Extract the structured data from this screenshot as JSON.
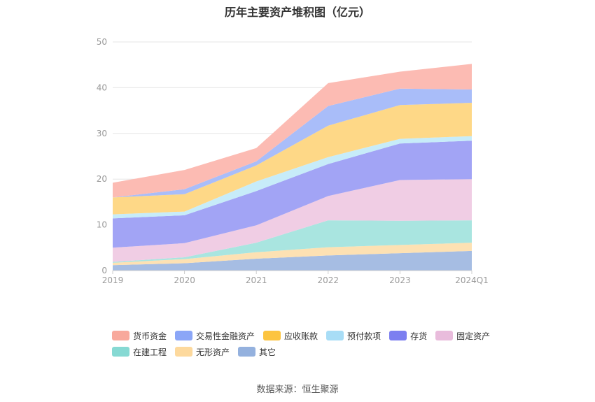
{
  "chart_data": {
    "type": "area",
    "stacked": true,
    "title": "历年主要资产堆积图（亿元）",
    "categories": [
      "2019",
      "2020",
      "2021",
      "2022",
      "2023",
      "2024Q1"
    ],
    "ylim": [
      0,
      50
    ],
    "yticks": [
      0,
      10,
      20,
      30,
      40,
      50
    ],
    "grid": true,
    "legend_position": "bottom",
    "series": [
      {
        "name": "其它",
        "color": "#a6bde3",
        "values": [
          1.2,
          1.6,
          2.6,
          3.3,
          3.8,
          4.3
        ]
      },
      {
        "name": "无形资产",
        "color": "#fde1b3",
        "values": [
          0.5,
          0.9,
          1.4,
          1.8,
          1.8,
          1.8
        ]
      },
      {
        "name": "在建工程",
        "color": "#a9e5e0",
        "values": [
          0.2,
          0.4,
          2.1,
          5.9,
          5.3,
          4.9
        ]
      },
      {
        "name": "固定资产",
        "color": "#f0cde4",
        "values": [
          3.1,
          3.1,
          3.8,
          5.3,
          8.9,
          9.0
        ]
      },
      {
        "name": "存货",
        "color": "#a2a4f5",
        "values": [
          6.4,
          6.1,
          7.5,
          7.0,
          8.0,
          8.4
        ]
      },
      {
        "name": "预付款项",
        "color": "#c7ecf9",
        "values": [
          0.9,
          0.8,
          2.1,
          1.5,
          1.0,
          1.0
        ]
      },
      {
        "name": "应收账款",
        "color": "#fed887",
        "values": [
          3.7,
          3.8,
          3.5,
          6.9,
          7.4,
          7.3
        ]
      },
      {
        "name": "交易性金融资产",
        "color": "#a9bdf9",
        "values": [
          0.0,
          1.1,
          0.9,
          4.3,
          3.6,
          2.9
        ]
      },
      {
        "name": "货币资金",
        "color": "#fcbbb3",
        "values": [
          3.2,
          4.2,
          2.9,
          5.0,
          3.7,
          5.6
        ]
      }
    ],
    "legend_order": [
      {
        "name": "货币资金",
        "color": "#f8a99c"
      },
      {
        "name": "交易性金融资产",
        "color": "#8ba6f7"
      },
      {
        "name": "应收账款",
        "color": "#fcc43f"
      },
      {
        "name": "预付款项",
        "color": "#a8ddf6"
      },
      {
        "name": "存货",
        "color": "#7c7ff0"
      },
      {
        "name": "固定资产",
        "color": "#e9bcdc"
      },
      {
        "name": "在建工程",
        "color": "#86d9d3"
      },
      {
        "name": "无形资产",
        "color": "#fdd99d"
      },
      {
        "name": "其它",
        "color": "#94b1de"
      }
    ]
  },
  "source": "数据来源：恒生聚源"
}
